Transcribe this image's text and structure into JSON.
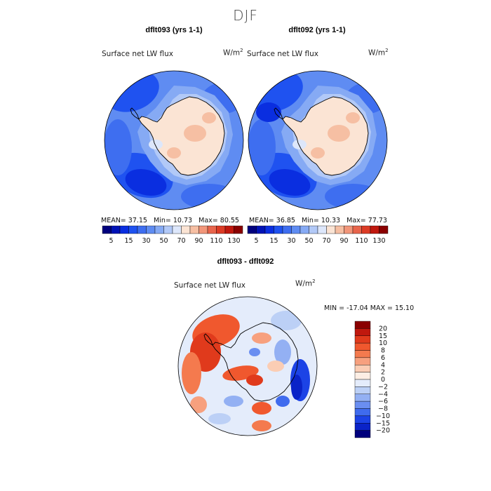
{
  "season": "DJF",
  "panels": [
    {
      "title": "dflt093 (yrs 1-1)",
      "field": "Surface net LW flux",
      "units": "W/m",
      "units_sup": "2",
      "stats": {
        "mean": "MEAN= 37.15",
        "min": "Min= 10.73",
        "max": "Max= 80.55"
      }
    },
    {
      "title": "dflt092 (yrs 1-1)",
      "field": "Surface net LW flux",
      "units": "W/m",
      "units_sup": "2",
      "stats": {
        "mean": "MEAN= 36.85",
        "min": "Min= 10.33",
        "max": "Max= 77.73"
      }
    }
  ],
  "diff_panel": {
    "title": "dflt093 - dflt092",
    "field": "Surface net LW flux",
    "units": "W/m",
    "units_sup": "2",
    "stats": "MIN = -17.04 MAX = 15.10"
  },
  "chart_data": [
    {
      "type": "heatmap",
      "title": "dflt093 (yrs 1-1)",
      "variable": "Surface net LW flux",
      "units": "W/m2",
      "mean": 37.15,
      "min": 10.73,
      "max": 80.55,
      "colorbar": {
        "levels": [
          5,
          10,
          15,
          20,
          30,
          40,
          50,
          60,
          70,
          80,
          90,
          100,
          110,
          120,
          130
        ],
        "tick_labels": [
          "5",
          "15",
          "30",
          "50",
          "70",
          "90",
          "110",
          "130"
        ],
        "colors": [
          "#00007d",
          "#0012b5",
          "#0a2ee0",
          "#1f52f0",
          "#3e6ef0",
          "#5f8cf2",
          "#86aaf4",
          "#b2c9f7",
          "#dde7fb",
          "#fbe4d4",
          "#f6bfa3",
          "#f2967a",
          "#e8654c",
          "#dc3b25",
          "#c0180e",
          "#8a0000"
        ]
      }
    },
    {
      "type": "heatmap",
      "title": "dflt092 (yrs 1-1)",
      "variable": "Surface net LW flux",
      "units": "W/m2",
      "mean": 36.85,
      "min": 10.33,
      "max": 77.73,
      "colorbar": {
        "levels": [
          5,
          10,
          15,
          20,
          30,
          40,
          50,
          60,
          70,
          80,
          90,
          100,
          110,
          120,
          130
        ],
        "tick_labels": [
          "5",
          "15",
          "30",
          "50",
          "70",
          "90",
          "110",
          "130"
        ],
        "colors": [
          "#00007d",
          "#0012b5",
          "#0a2ee0",
          "#1f52f0",
          "#3e6ef0",
          "#5f8cf2",
          "#86aaf4",
          "#b2c9f7",
          "#dde7fb",
          "#fbe4d4",
          "#f6bfa3",
          "#f2967a",
          "#e8654c",
          "#dc3b25",
          "#c0180e",
          "#8a0000"
        ]
      }
    },
    {
      "type": "heatmap",
      "title": "dflt093 - dflt092",
      "variable": "Surface net LW flux",
      "units": "W/m2",
      "min": -17.04,
      "max": 15.1,
      "colorbar": {
        "levels": [
          -20,
          -15,
          -10,
          -8,
          -6,
          -4,
          -2,
          0,
          2,
          4,
          6,
          8,
          10,
          15,
          20
        ],
        "tick_labels": [
          "20",
          "15",
          "10",
          "8",
          "6",
          "4",
          "2",
          "0",
          "−2",
          "−4",
          "−6",
          "−8",
          "−10",
          "−15",
          "−20"
        ],
        "colors": [
          "#8a0000",
          "#c0180e",
          "#e03a1c",
          "#f0582e",
          "#f47a4e",
          "#f7a07e",
          "#fbcdb4",
          "#fdeee4",
          "#e4ecfb",
          "#bcd0f6",
          "#93b0f3",
          "#6a8ef1",
          "#3f6bee",
          "#1c43e6",
          "#0a23c8",
          "#00007d"
        ]
      }
    }
  ]
}
